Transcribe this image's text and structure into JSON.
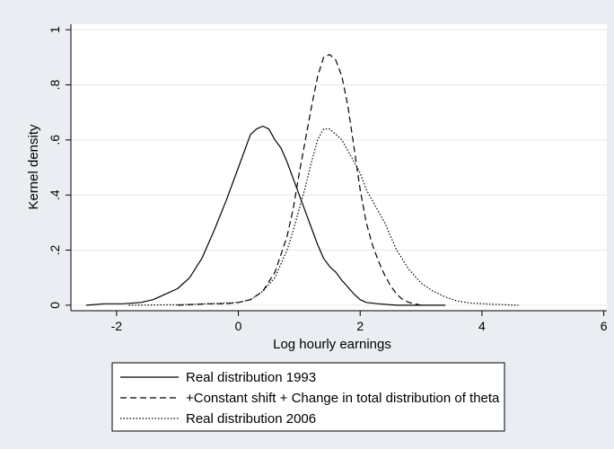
{
  "chart_data": {
    "type": "line",
    "title": "",
    "xlabel": "Log hourly earnings",
    "ylabel": "Kernel density",
    "xlim": [
      -2.75,
      6.05
    ],
    "ylim": [
      -0.02,
      1.02
    ],
    "xticks": [
      -2,
      0,
      2,
      4,
      6
    ],
    "xtick_labels": [
      "-2",
      "0",
      "2",
      "4",
      "6"
    ],
    "yticks": [
      0,
      0.2,
      0.4,
      0.6,
      0.8,
      1
    ],
    "ytick_labels": [
      "0",
      ".2",
      ".4",
      ".6",
      ".8",
      "1"
    ],
    "grid": true,
    "legend_position": "bottom",
    "series": [
      {
        "name": "Real distribution 1993",
        "dash": "solid",
        "x": [
          -2.5,
          -2.2,
          -1.9,
          -1.6,
          -1.4,
          -1.2,
          -1.0,
          -0.8,
          -0.6,
          -0.4,
          -0.2,
          0.0,
          0.1,
          0.2,
          0.3,
          0.4,
          0.5,
          0.6,
          0.7,
          0.8,
          0.9,
          1.0,
          1.1,
          1.2,
          1.3,
          1.4,
          1.5,
          1.6,
          1.7,
          1.8,
          1.9,
          2.0,
          2.1,
          2.3,
          2.6,
          3.0,
          3.4
        ],
        "y": [
          0.0,
          0.005,
          0.005,
          0.01,
          0.02,
          0.04,
          0.06,
          0.1,
          0.17,
          0.27,
          0.38,
          0.5,
          0.56,
          0.62,
          0.64,
          0.65,
          0.64,
          0.6,
          0.57,
          0.52,
          0.46,
          0.4,
          0.34,
          0.28,
          0.22,
          0.17,
          0.14,
          0.12,
          0.09,
          0.065,
          0.04,
          0.02,
          0.01,
          0.005,
          0.0,
          0.0,
          0.0
        ]
      },
      {
        "name": "+Constant shift + Change in total distribution of theta",
        "dash": "dashed",
        "x": [
          -1.0,
          -0.5,
          -0.2,
          0.0,
          0.2,
          0.4,
          0.6,
          0.8,
          0.9,
          1.0,
          1.1,
          1.2,
          1.3,
          1.4,
          1.5,
          1.6,
          1.7,
          1.8,
          1.9,
          2.0,
          2.1,
          2.2,
          2.3,
          2.4,
          2.5,
          2.6,
          2.7,
          2.8,
          3.0
        ],
        "y": [
          0.0,
          0.005,
          0.005,
          0.01,
          0.02,
          0.05,
          0.12,
          0.25,
          0.35,
          0.48,
          0.6,
          0.72,
          0.83,
          0.9,
          0.91,
          0.89,
          0.83,
          0.72,
          0.57,
          0.42,
          0.3,
          0.22,
          0.16,
          0.11,
          0.07,
          0.04,
          0.02,
          0.01,
          0.0
        ]
      },
      {
        "name": "Real distribution 2006",
        "dash": "dotted",
        "x": [
          -1.8,
          -1.0,
          -0.5,
          0.0,
          0.2,
          0.4,
          0.6,
          0.8,
          0.9,
          1.0,
          1.1,
          1.2,
          1.3,
          1.4,
          1.5,
          1.6,
          1.7,
          1.8,
          1.9,
          2.0,
          2.1,
          2.2,
          2.4,
          2.6,
          2.8,
          3.0,
          3.2,
          3.4,
          3.6,
          3.8,
          4.2,
          4.6
        ],
        "y": [
          0.0,
          0.002,
          0.005,
          0.01,
          0.02,
          0.05,
          0.1,
          0.2,
          0.27,
          0.35,
          0.43,
          0.52,
          0.6,
          0.64,
          0.64,
          0.62,
          0.6,
          0.56,
          0.52,
          0.48,
          0.42,
          0.38,
          0.3,
          0.2,
          0.13,
          0.08,
          0.05,
          0.03,
          0.015,
          0.008,
          0.003,
          0.0
        ]
      }
    ]
  }
}
